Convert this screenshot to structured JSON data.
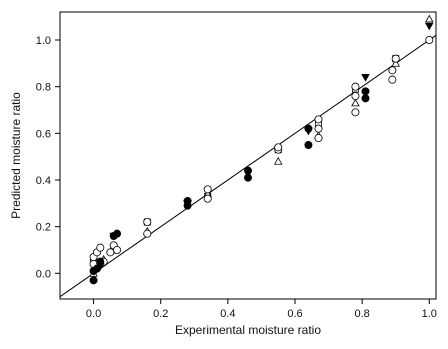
{
  "chart_data": {
    "type": "scatter",
    "title": "",
    "xlabel": "Experimental moisture ratio",
    "ylabel": "Predicted moisture ratio",
    "xlim": [
      -0.1,
      1.02
    ],
    "ylim": [
      -0.11,
      1.12
    ],
    "xticks": [
      0.0,
      0.2,
      0.4,
      0.6,
      0.8,
      1.0
    ],
    "xtick_labels": [
      "0.0",
      "0.2",
      "0.4",
      "0.6",
      "0.8",
      "1.0"
    ],
    "yticks": [
      0.0,
      0.2,
      0.4,
      0.6,
      0.8,
      1.0
    ],
    "ytick_labels": [
      "0.0",
      "0.2",
      "0.4",
      "0.6",
      "0.8",
      "1.0"
    ],
    "grid": false,
    "reference_line": {
      "x": [
        -0.1,
        1.02
      ],
      "y": [
        -0.1,
        1.02
      ],
      "color": "#000000"
    },
    "series": [
      {
        "marker": "filled-circle",
        "color": "#000000",
        "points": [
          [
            0.0,
            -0.03
          ],
          [
            0.0,
            0.01
          ],
          [
            0.01,
            0.02
          ],
          [
            0.02,
            0.05
          ],
          [
            0.06,
            0.16
          ],
          [
            0.07,
            0.17
          ],
          [
            0.28,
            0.29
          ],
          [
            0.28,
            0.31
          ],
          [
            0.46,
            0.41
          ],
          [
            0.46,
            0.44
          ],
          [
            0.64,
            0.55
          ],
          [
            0.64,
            0.62
          ],
          [
            0.81,
            0.75
          ],
          [
            0.81,
            0.78
          ]
        ]
      },
      {
        "marker": "open-circle",
        "color": "#000000",
        "points": [
          [
            0.0,
            0.07
          ],
          [
            0.0,
            0.04
          ],
          [
            0.01,
            0.09
          ],
          [
            0.02,
            0.11
          ],
          [
            0.03,
            0.05
          ],
          [
            0.05,
            0.09
          ],
          [
            0.06,
            0.12
          ],
          [
            0.07,
            0.1
          ],
          [
            0.16,
            0.17
          ],
          [
            0.16,
            0.22
          ],
          [
            0.34,
            0.32
          ],
          [
            0.34,
            0.36
          ],
          [
            0.55,
            0.53
          ],
          [
            0.55,
            0.54
          ],
          [
            0.67,
            0.58
          ],
          [
            0.67,
            0.62
          ],
          [
            0.67,
            0.66
          ],
          [
            0.78,
            0.69
          ],
          [
            0.78,
            0.76
          ],
          [
            0.78,
            0.8
          ],
          [
            0.89,
            0.83
          ],
          [
            0.89,
            0.87
          ],
          [
            0.9,
            0.92
          ],
          [
            1.0,
            1.0
          ]
        ]
      },
      {
        "marker": "filled-triangle-down",
        "color": "#000000",
        "points": [
          [
            0.02,
            0.03
          ],
          [
            0.06,
            0.16
          ],
          [
            0.28,
            0.3
          ],
          [
            0.46,
            0.43
          ],
          [
            0.64,
            0.61
          ],
          [
            0.81,
            0.84
          ],
          [
            1.0,
            1.06
          ]
        ]
      },
      {
        "marker": "open-triangle-up",
        "color": "#000000",
        "points": [
          [
            0.0,
            0.0
          ],
          [
            0.03,
            0.06
          ],
          [
            0.16,
            0.18
          ],
          [
            0.34,
            0.34
          ],
          [
            0.55,
            0.48
          ],
          [
            0.67,
            0.59
          ],
          [
            0.78,
            0.73
          ],
          [
            0.9,
            0.9
          ],
          [
            1.0,
            1.09
          ]
        ]
      },
      {
        "marker": "open-square",
        "color": "#000000",
        "points": [
          [
            0.0,
            0.06
          ],
          [
            0.06,
            0.1
          ],
          [
            0.16,
            0.22
          ],
          [
            0.34,
            0.33
          ],
          [
            0.55,
            0.53
          ],
          [
            0.67,
            0.64
          ],
          [
            0.78,
            0.79
          ],
          [
            0.9,
            0.92
          ]
        ]
      }
    ]
  }
}
